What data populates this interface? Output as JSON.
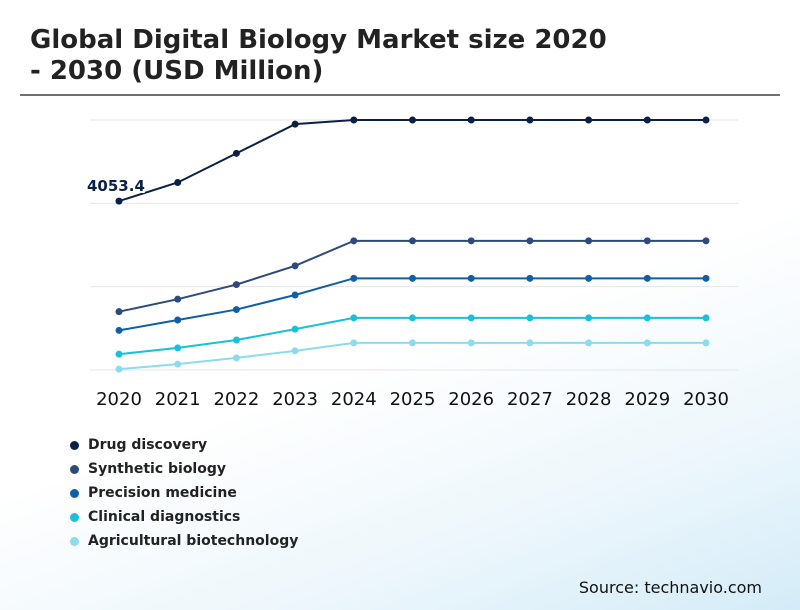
{
  "header": {
    "title_line1": "Global Digital Biology Market size 2020",
    "title_line2": "- 2030 (USD Million)"
  },
  "source": "Source: technavio.com",
  "chart_data": {
    "type": "line",
    "x": [
      "2020",
      "2021",
      "2022",
      "2023",
      "2024",
      "2025",
      "2026",
      "2027",
      "2028",
      "2029",
      "2030"
    ],
    "ylim": [
      0,
      6000
    ],
    "grid": true,
    "y_tick_labels_shown": false,
    "legend_position": "bottom-left",
    "annotation": {
      "text": "4053.4",
      "series": "Drug discovery",
      "x": "2020"
    },
    "series": [
      {
        "name": "Drug discovery",
        "color": "#0b2045",
        "values": [
          4053.4,
          4500,
          5200,
          5900,
          6000,
          6000,
          6000,
          6000,
          6000,
          6000,
          6000
        ]
      },
      {
        "name": "Synthetic biology",
        "color": "#2c4a7a",
        "values": [
          1400,
          1700,
          2050,
          2500,
          3100,
          3100,
          3100,
          3100,
          3100,
          3100,
          3100
        ]
      },
      {
        "name": "Precision medicine",
        "color": "#0d5fa6",
        "values": [
          950,
          1200,
          1450,
          1800,
          2200,
          2200,
          2200,
          2200,
          2200,
          2200,
          2200
        ]
      },
      {
        "name": "Clinical diagnostics",
        "color": "#17c1db",
        "values": [
          380,
          530,
          720,
          980,
          1250,
          1250,
          1250,
          1250,
          1250,
          1250,
          1250
        ]
      },
      {
        "name": "Agricultural biotechnology",
        "color": "#8bdcee",
        "values": [
          20,
          140,
          290,
          460,
          650,
          650,
          650,
          650,
          650,
          650,
          650
        ]
      }
    ]
  }
}
